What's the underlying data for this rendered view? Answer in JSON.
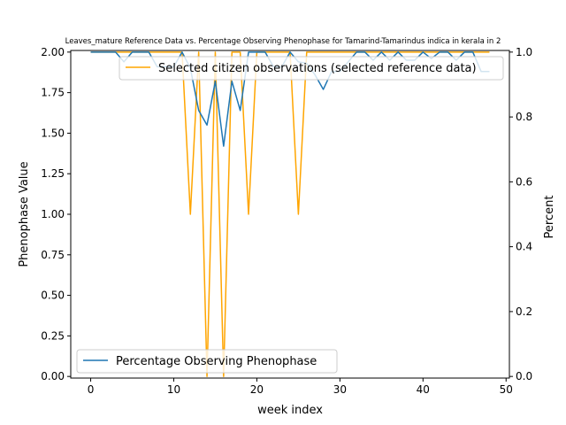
{
  "chart_data": {
    "type": "line",
    "title": "Leaves_mature Reference Data vs. Percentage Observing Phenophase for Tamarind-Tamarindus indica in kerala in 2",
    "xlabel": "week index",
    "ylabel_left": "Phenophase Value",
    "ylabel_right": "Percent",
    "xlim": [
      -2.4,
      50.4
    ],
    "ylim_left": [
      -0.01,
      2.01
    ],
    "ylim_right": [
      -0.005,
      1.005
    ],
    "x_ticks": [
      0,
      10,
      20,
      30,
      40,
      50
    ],
    "y_left_ticks": [
      "0.00",
      "0.25",
      "0.50",
      "0.75",
      "1.00",
      "1.25",
      "1.50",
      "1.75",
      "2.00"
    ],
    "y_right_ticks": [
      "0.0",
      "0.2",
      "0.4",
      "0.6",
      "0.8",
      "1.0"
    ],
    "grid": false,
    "series": [
      {
        "name": "Selected citizen observations (selected reference data)",
        "axis": "left",
        "color": "#ffa500",
        "legend_position": "upper-right",
        "x": [
          0,
          1,
          2,
          3,
          4,
          5,
          6,
          7,
          8,
          9,
          10,
          11,
          12,
          13,
          14,
          15,
          16,
          17,
          18,
          19,
          20,
          21,
          22,
          23,
          24,
          25,
          26,
          27,
          28,
          29,
          30,
          31,
          32,
          33,
          34,
          35,
          36,
          37,
          38,
          39,
          40,
          41,
          42,
          43,
          44,
          45,
          46,
          47,
          48
        ],
        "values": [
          2,
          2,
          2,
          2,
          2,
          2,
          2,
          2,
          2,
          2,
          2,
          2,
          1,
          2,
          0,
          2,
          0,
          2,
          2,
          1,
          2,
          2,
          2,
          2,
          2,
          1,
          2,
          2,
          2,
          2,
          2,
          2,
          2,
          2,
          2,
          2,
          2,
          2,
          2,
          2,
          2,
          2,
          2,
          2,
          2,
          2,
          2,
          2,
          2
        ]
      },
      {
        "name": "Percentage Observing Phenophase",
        "axis": "right",
        "color": "#1f77b4",
        "legend_position": "lower-left",
        "x": [
          0,
          1,
          2,
          3,
          4,
          5,
          6,
          7,
          8,
          9,
          10,
          11,
          12,
          13,
          14,
          15,
          16,
          17,
          18,
          19,
          20,
          21,
          22,
          23,
          24,
          25,
          26,
          27,
          28,
          29,
          30,
          31,
          32,
          33,
          34,
          35,
          36,
          37,
          38,
          39,
          40,
          41,
          42,
          43,
          44,
          45,
          46,
          47,
          48
        ],
        "values": [
          1.0,
          1.0,
          1.0,
          1.0,
          0.97,
          1.0,
          1.0,
          1.0,
          0.955,
          0.955,
          0.955,
          1.0,
          0.95,
          0.82,
          0.775,
          0.91,
          0.71,
          0.91,
          0.82,
          1.0,
          1.0,
          1.0,
          0.955,
          0.955,
          1.0,
          0.97,
          0.965,
          0.93,
          0.885,
          0.94,
          0.94,
          0.97,
          1.0,
          1.0,
          0.975,
          1.0,
          0.975,
          1.0,
          0.975,
          0.975,
          1.0,
          0.98,
          1.0,
          1.0,
          0.975,
          1.0,
          1.0,
          0.94,
          0.94
        ]
      }
    ]
  }
}
